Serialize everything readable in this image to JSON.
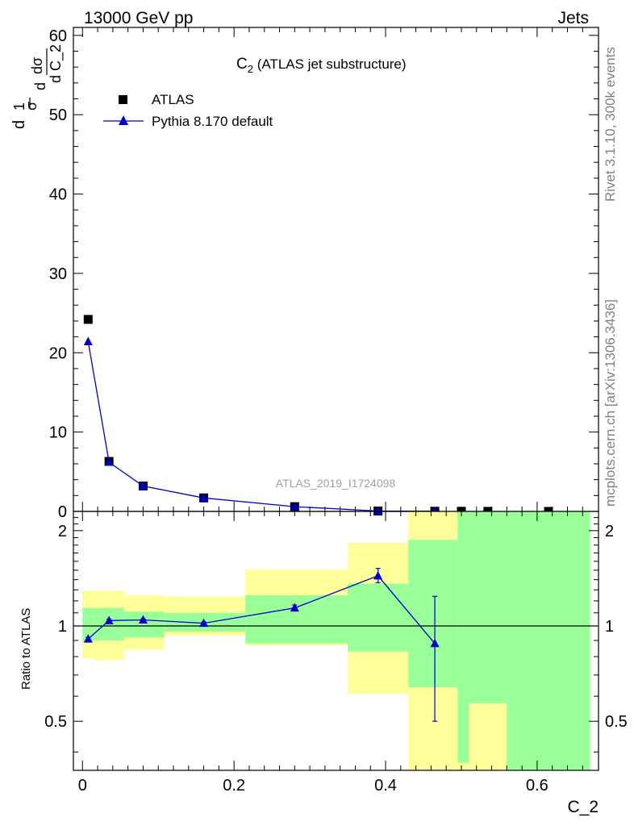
{
  "header": {
    "left": "13000 GeV pp",
    "right": "Jets"
  },
  "title_main": "C",
  "title_sub": "2",
  "title_rest": " (ATLAS jet substructure)",
  "watermark": "ATLAS_2019_I1724098",
  "side_text_top": "Rivet 3.1.10,  300k events",
  "side_text_bottom": "mcplots.cern.ch [arXiv:1306.3436]",
  "main_ylabel": {
    "d1": "d",
    "one": "1",
    "sigma_den": "σ",
    "d2": "d",
    "dsigma": "dσ",
    "dvar": "d C_2"
  },
  "colors": {
    "atlas": "#000000",
    "pythia": "#0000cc",
    "band_inner": "#99ff99",
    "band_outer": "#ffff99"
  },
  "chart_data": [
    {
      "type": "scatter",
      "xlabel": "C_2",
      "ylabel": "",
      "xlim": [
        -0.012,
        0.681
      ],
      "ylim": [
        0,
        61
      ],
      "x_ticks": [
        {
          "v": 0,
          "label": "0"
        },
        {
          "v": 0.2,
          "label": "0.2"
        },
        {
          "v": 0.4,
          "label": "0.4"
        },
        {
          "v": 0.6,
          "label": "0.6"
        }
      ],
      "y_ticks": [
        {
          "v": 0,
          "label": "0"
        },
        {
          "v": 10,
          "label": "10"
        },
        {
          "v": 20,
          "label": "20"
        },
        {
          "v": 30,
          "label": "30"
        },
        {
          "v": 40,
          "label": "40"
        },
        {
          "v": 50,
          "label": "50"
        },
        {
          "v": 60,
          "label": "60"
        }
      ],
      "legend_position": "top-left",
      "series": [
        {
          "name": "ATLAS",
          "marker": "square",
          "x": [
            0.0075,
            0.035,
            0.08,
            0.16,
            0.28,
            0.39,
            0.465,
            0.5,
            0.535,
            0.615
          ],
          "values": [
            24.2,
            6.3,
            3.2,
            1.7,
            0.6,
            0.05,
            0.02,
            0.01,
            0.005,
            0.003
          ]
        },
        {
          "name": "Pythia 8.170 default",
          "marker": "triangle",
          "x": [
            0.0075,
            0.035,
            0.08,
            0.16,
            0.28,
            0.39,
            0.465
          ],
          "values": [
            21.4,
            6.2,
            3.2,
            1.7,
            0.6,
            0.05,
            0.02
          ]
        }
      ]
    },
    {
      "type": "line",
      "xlabel": "C_2",
      "ylabel": "Ratio to ATLAS",
      "scale": "log",
      "xlim": [
        -0.012,
        0.681
      ],
      "ylim": [
        0.35,
        2.3
      ],
      "y_ticks": [
        {
          "v": 0.5,
          "label": "0.5"
        },
        {
          "v": 1,
          "label": "1"
        },
        {
          "v": 2,
          "label": "2"
        }
      ],
      "reference_line": 1,
      "bands": [
        {
          "x0": 0.0,
          "x1": 0.015,
          "outer": [
            0.79,
            1.29
          ],
          "inner": [
            0.89,
            1.14
          ]
        },
        {
          "x0": 0.015,
          "x1": 0.055,
          "outer": [
            0.78,
            1.29
          ],
          "inner": [
            0.9,
            1.14
          ]
        },
        {
          "x0": 0.055,
          "x1": 0.108,
          "outer": [
            0.84,
            1.25
          ],
          "inner": [
            0.92,
            1.11
          ]
        },
        {
          "x0": 0.108,
          "x1": 0.215,
          "outer": [
            0.93,
            1.24
          ],
          "inner": [
            0.96,
            1.1
          ]
        },
        {
          "x0": 0.215,
          "x1": 0.35,
          "outer": [
            0.87,
            1.51
          ],
          "inner": [
            0.88,
            1.25
          ]
        },
        {
          "x0": 0.35,
          "x1": 0.43,
          "outer": [
            0.61,
            1.83
          ],
          "inner": [
            0.83,
            1.36
          ]
        },
        {
          "x0": 0.43,
          "x1": 0.495,
          "outer": [
            0.35,
            2.3
          ],
          "inner": [
            0.64,
            1.87
          ]
        },
        {
          "x0": 0.495,
          "x1": 0.51,
          "outer": [
            0.35,
            2.3
          ],
          "inner": [
            0.37,
            2.3
          ]
        },
        {
          "x0": 0.51,
          "x1": 0.56,
          "outer": [
            0.35,
            0.57
          ],
          "inner": [
            0.57,
            2.3
          ]
        },
        {
          "x0": 0.56,
          "x1": 0.67,
          "outer": [
            0.35,
            0.35
          ],
          "inner": [
            0.35,
            2.3
          ]
        }
      ],
      "series": [
        {
          "name": "Pythia 8.170 default",
          "x": [
            0.0075,
            0.035,
            0.08,
            0.16,
            0.28,
            0.39,
            0.465
          ],
          "values": [
            0.91,
            1.04,
            1.045,
            1.02,
            1.14,
            1.44,
            0.88
          ],
          "err_low": [
            0.01,
            0.01,
            0.01,
            0.01,
            0.02,
            0.07,
            0.38
          ],
          "err_high": [
            0.01,
            0.01,
            0.01,
            0.01,
            0.025,
            0.08,
            0.36
          ]
        }
      ]
    }
  ]
}
